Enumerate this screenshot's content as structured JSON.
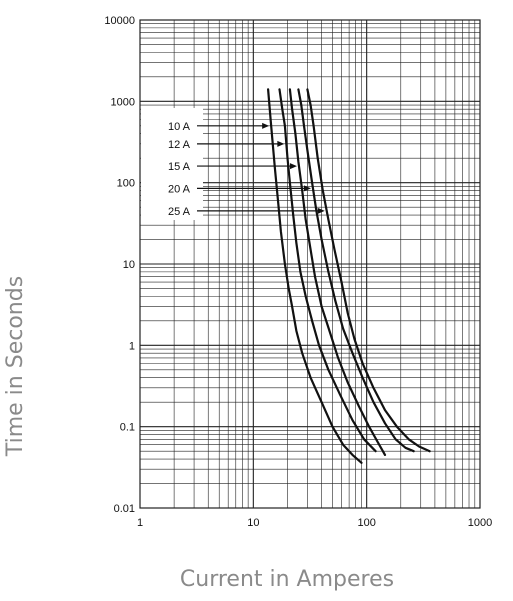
{
  "chart_data": {
    "type": "line",
    "title": "",
    "xlabel": "Current in Amperes",
    "ylabel": "Time in Seconds",
    "xscale": "log",
    "yscale": "log",
    "xlim": [
      1,
      1000
    ],
    "ylim": [
      0.01,
      10000
    ],
    "grid": true,
    "x_ticks": [
      "1",
      "10",
      "100",
      "1000"
    ],
    "y_ticks": [
      "0.01",
      "0.1",
      "1",
      "10",
      "100",
      "1000",
      "10000"
    ],
    "series": [
      {
        "name": "10 A",
        "label_target_y": 500,
        "points": [
          [
            13.5,
            1400
          ],
          [
            14.2,
            600
          ],
          [
            15.5,
            150
          ],
          [
            16.5,
            60
          ],
          [
            17.5,
            25
          ],
          [
            19,
            10
          ],
          [
            20.5,
            5
          ],
          [
            22,
            3
          ],
          [
            24,
            1.5
          ],
          [
            27,
            0.8
          ],
          [
            32,
            0.4
          ],
          [
            40,
            0.2
          ],
          [
            50,
            0.1
          ],
          [
            62,
            0.06
          ],
          [
            75,
            0.045
          ],
          [
            90,
            0.036
          ]
        ]
      },
      {
        "name": "12 A",
        "label_target_y": 300,
        "points": [
          [
            17,
            1400
          ],
          [
            18,
            800
          ],
          [
            19,
            500
          ],
          [
            20,
            200
          ],
          [
            21,
            100
          ],
          [
            22.5,
            40
          ],
          [
            24,
            18
          ],
          [
            26,
            8
          ],
          [
            29,
            4
          ],
          [
            33,
            2
          ],
          [
            38,
            1
          ],
          [
            46,
            0.5
          ],
          [
            58,
            0.25
          ],
          [
            75,
            0.12
          ],
          [
            95,
            0.07
          ],
          [
            120,
            0.05
          ]
        ]
      },
      {
        "name": "15 A",
        "label_target_y": 160,
        "points": [
          [
            21,
            1400
          ],
          [
            22,
            800
          ],
          [
            23.5,
            400
          ],
          [
            25,
            180
          ],
          [
            27,
            80
          ],
          [
            29,
            35
          ],
          [
            32,
            15
          ],
          [
            35,
            7
          ],
          [
            40,
            3
          ],
          [
            47,
            1.5
          ],
          [
            56,
            0.7
          ],
          [
            68,
            0.35
          ],
          [
            85,
            0.18
          ],
          [
            105,
            0.1
          ],
          [
            125,
            0.065
          ],
          [
            145,
            0.045
          ]
        ]
      },
      {
        "name": "20 A",
        "label_target_y": 85,
        "points": [
          [
            25,
            1400
          ],
          [
            26.5,
            900
          ],
          [
            28,
            500
          ],
          [
            30,
            250
          ],
          [
            33,
            100
          ],
          [
            36,
            45
          ],
          [
            40,
            20
          ],
          [
            46,
            8
          ],
          [
            53,
            3.5
          ],
          [
            62,
            1.6
          ],
          [
            75,
            0.8
          ],
          [
            92,
            0.4
          ],
          [
            115,
            0.2
          ],
          [
            145,
            0.11
          ],
          [
            180,
            0.07
          ],
          [
            220,
            0.055
          ],
          [
            260,
            0.05
          ]
        ]
      },
      {
        "name": "25 A",
        "label_target_y": 45,
        "points": [
          [
            30,
            1400
          ],
          [
            32,
            900
          ],
          [
            34,
            500
          ],
          [
            37,
            200
          ],
          [
            41,
            80
          ],
          [
            46,
            35
          ],
          [
            52,
            15
          ],
          [
            60,
            6
          ],
          [
            68,
            2.5
          ],
          [
            78,
            1.2
          ],
          [
            92,
            0.6
          ],
          [
            115,
            0.3
          ],
          [
            145,
            0.16
          ],
          [
            185,
            0.1
          ],
          [
            235,
            0.07
          ],
          [
            290,
            0.057
          ],
          [
            360,
            0.05
          ]
        ]
      }
    ]
  }
}
